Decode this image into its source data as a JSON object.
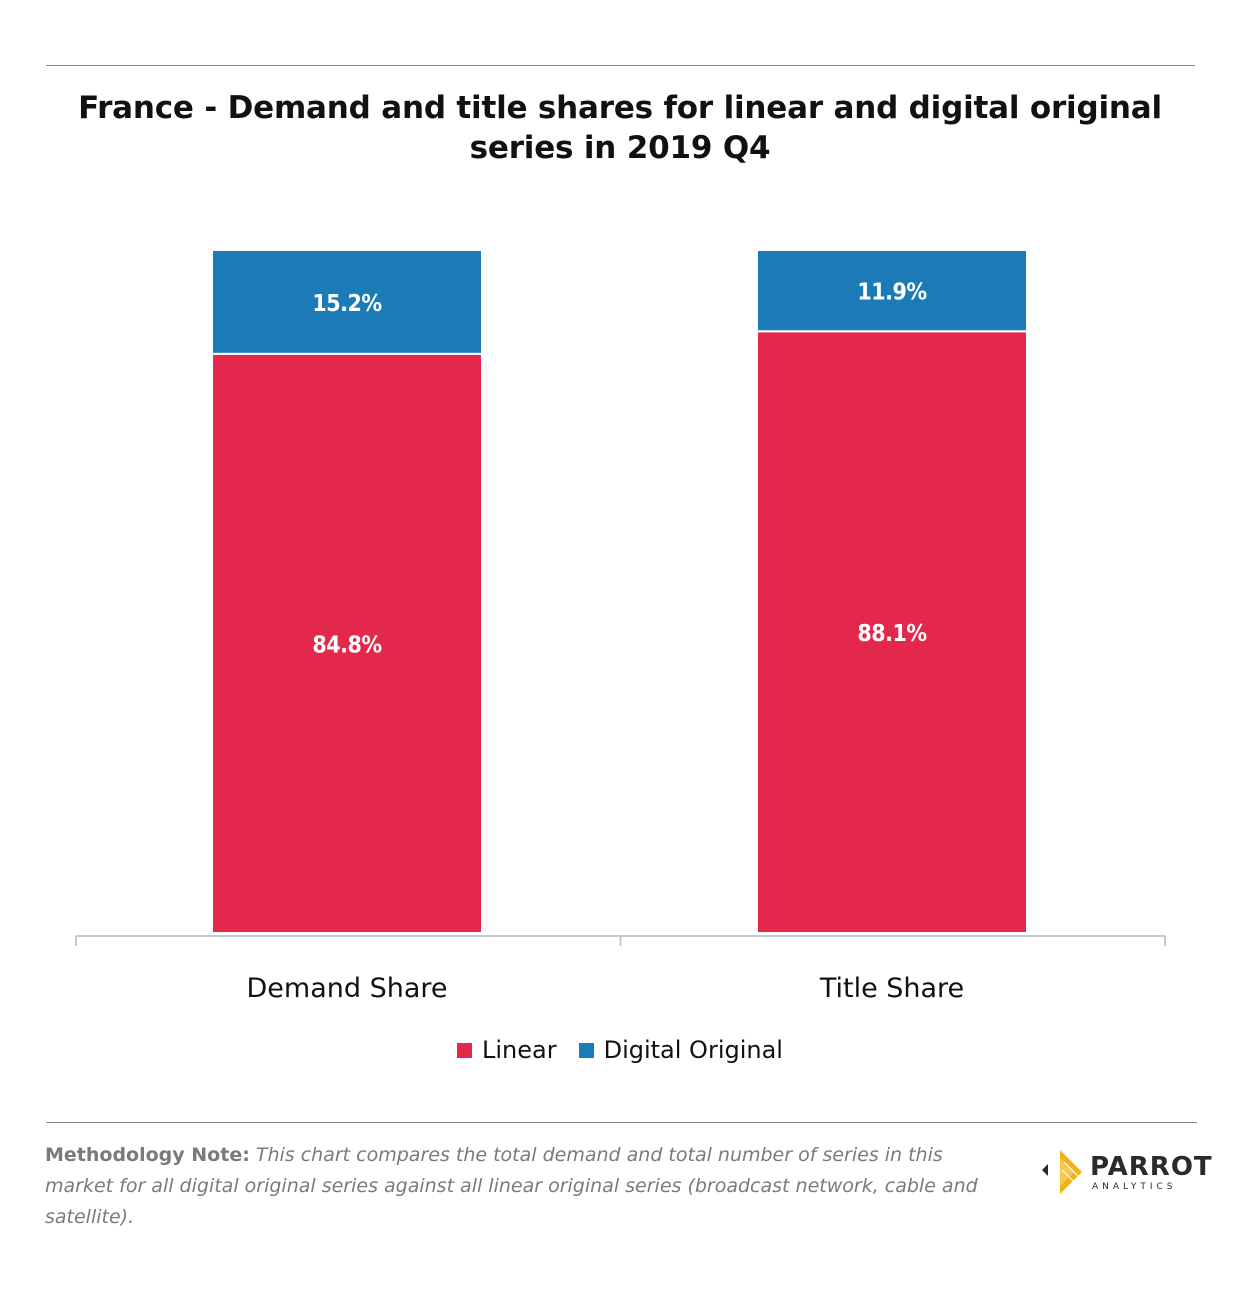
{
  "colors": {
    "linear": "#e3284b",
    "digital_original": "#1b7bb7",
    "axis": "#c8c8c8",
    "rule": "#8a8a8a",
    "bar_label": "#ffffff"
  },
  "chart_data": {
    "type": "bar",
    "stacked": true,
    "title": "France - Demand and title shares for linear and digital original series in 2019 Q4",
    "categories": [
      "Demand Share",
      "Title Share"
    ],
    "series": [
      {
        "name": "Linear",
        "values": [
          84.8,
          88.1
        ],
        "labels": [
          "84.8%",
          "88.1%"
        ]
      },
      {
        "name": "Digital Original",
        "values": [
          15.2,
          11.9
        ],
        "labels": [
          "15.2%",
          "11.9%"
        ]
      }
    ],
    "ylim": [
      0,
      100
    ],
    "grid": false,
    "legend": "bottom"
  },
  "footer": {
    "note_label": "Methodology Note:",
    "note_text": "This chart compares the total demand and total number of series in this market for all digital original series against all linear original series (broadcast network, cable and satellite).",
    "logo_name": "PARROT",
    "logo_sub": "ANALYTICS",
    "logo_icon": "parrot-logo-icon"
  }
}
